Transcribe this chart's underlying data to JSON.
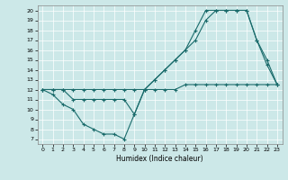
{
  "xlabel": "Humidex (Indice chaleur)",
  "xlim": [
    -0.5,
    23.5
  ],
  "ylim": [
    6.5,
    20.5
  ],
  "xticks": [
    0,
    1,
    2,
    3,
    4,
    5,
    6,
    7,
    8,
    9,
    10,
    11,
    12,
    13,
    14,
    15,
    16,
    17,
    18,
    19,
    20,
    21,
    22,
    23
  ],
  "yticks": [
    7,
    8,
    9,
    10,
    11,
    12,
    13,
    14,
    15,
    16,
    17,
    18,
    19,
    20
  ],
  "bg_color": "#cce8e8",
  "line_color": "#1a6b6b",
  "line1_x": [
    0,
    1,
    2,
    3,
    4,
    5,
    6,
    7,
    8,
    9,
    10,
    11,
    12,
    13,
    14,
    15,
    16,
    17,
    18,
    19,
    20,
    21,
    22,
    23
  ],
  "line1_y": [
    12,
    11.5,
    10.5,
    10,
    8.5,
    8,
    7.5,
    7.5,
    7,
    9.5,
    12,
    13,
    14,
    15,
    16,
    17,
    19,
    20,
    20,
    20,
    20,
    17,
    14.5,
    12.5
  ],
  "line2_x": [
    0,
    1,
    2,
    3,
    4,
    5,
    6,
    7,
    8,
    9,
    10,
    11,
    12,
    13,
    14,
    15,
    16,
    17,
    18,
    19,
    20,
    21,
    22,
    23
  ],
  "line2_y": [
    12,
    12,
    12,
    11,
    11,
    11,
    11,
    11,
    11,
    9.5,
    12,
    13,
    14,
    15,
    16,
    18,
    20,
    20,
    20,
    20,
    20,
    17,
    15,
    12.5
  ],
  "line3_x": [
    0,
    1,
    2,
    3,
    4,
    5,
    6,
    7,
    8,
    9,
    10,
    11,
    12,
    13,
    14,
    15,
    16,
    17,
    18,
    19,
    20,
    21,
    22,
    23
  ],
  "line3_y": [
    12,
    12,
    12,
    12,
    12,
    12,
    12,
    12,
    12,
    12,
    12,
    12,
    12,
    12,
    12.5,
    12.5,
    12.5,
    12.5,
    12.5,
    12.5,
    12.5,
    12.5,
    12.5,
    12.5
  ]
}
